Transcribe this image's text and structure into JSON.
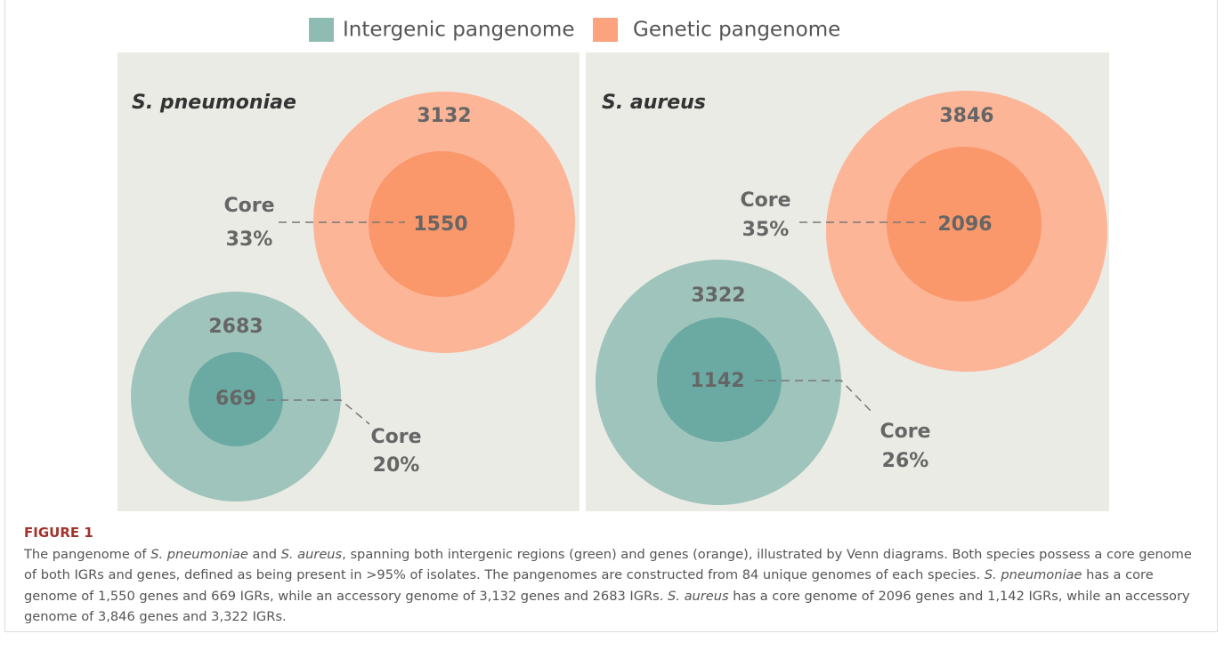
{
  "legend": [
    {
      "label": "Intergenic pangenome",
      "color": "#8fbcb2"
    },
    {
      "label": "Genetic pangenome",
      "color": "#fba37e"
    }
  ],
  "panels": [
    {
      "title": "S. pneumoniae",
      "genetic": {
        "total": 3132,
        "core": 1550,
        "core_label": "Core",
        "core_percent": "33%"
      },
      "intergenic": {
        "total": 2683,
        "core": 669,
        "core_label": "Core",
        "core_percent": "20%"
      }
    },
    {
      "title": "S. aureus",
      "genetic": {
        "total": 3846,
        "core": 2096,
        "core_label": "Core",
        "core_percent": "35%"
      },
      "intergenic": {
        "total": 3322,
        "core": 1142,
        "core_label": "Core",
        "core_percent": "26%"
      }
    }
  ],
  "caption": {
    "label": "FIGURE 1",
    "segments": [
      {
        "text": "The pangenome of "
      },
      {
        "text": "S. pneumoniae",
        "italic": true
      },
      {
        "text": " and "
      },
      {
        "text": "S. aureus",
        "italic": true
      },
      {
        "text": ", spanning both intergenic regions (green) and genes (orange), illustrated by Venn diagrams. Both species possess a core genome of both IGRs and genes, defined as being present in >95% of isolates. The pangenomes are constructed from 84 unique genomes of each species. "
      },
      {
        "text": "S. pneumoniae",
        "italic": true
      },
      {
        "text": " has a core genome of 1,550 genes and 669 IGRs, while an accessory genome of 3,132 genes and 2683 IGRs. "
      },
      {
        "text": "S. aureus",
        "italic": true
      },
      {
        "text": " has a core genome of 2096 genes and 1,142 IGRs, while an accessory genome of 3,846 genes and 3,322 IGRs."
      }
    ]
  }
}
